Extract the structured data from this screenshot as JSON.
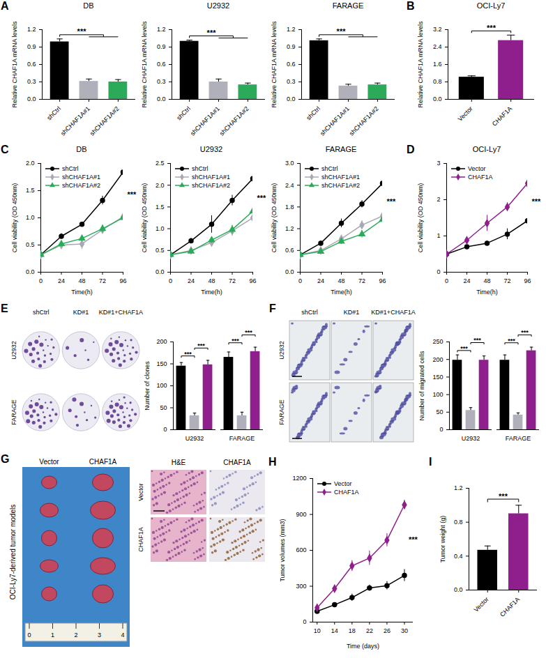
{
  "chart_data": [
    {
      "panel": "A",
      "type": "bar",
      "title": "DB",
      "ylabel": "Relative CHAF1A mRNA levels",
      "categories": [
        "shCtrl",
        "shCHAF1A#1",
        "shCHAF1A#2"
      ],
      "values": [
        0.99,
        0.31,
        0.3
      ],
      "errors": [
        0.05,
        0.04,
        0.04
      ],
      "colors": [
        "#000000",
        "#b0b0ba",
        "#2bab5a"
      ],
      "ylim": [
        0,
        1.2
      ],
      "yticks": [
        {
          "value": 0,
          "label": "0.0"
        },
        0.3,
        0.6,
        0.9,
        1.2
      ],
      "annotation": "***"
    },
    {
      "type": "bar",
      "title": "U2932",
      "ylabel": "Relative CHAF1A mRNA levels",
      "categories": [
        "shCtrl",
        "shCHAF1A#1",
        "shCHAF1A#2"
      ],
      "values": [
        1.0,
        0.3,
        0.25
      ],
      "errors": [
        0.02,
        0.05,
        0.03
      ],
      "colors": [
        "#000000",
        "#b0b0ba",
        "#2bab5a"
      ],
      "ylim": [
        0,
        1.2
      ],
      "yticks": [
        {
          "value": 0,
          "label": "0.0"
        },
        0.3,
        0.6,
        0.9,
        1.2
      ],
      "annotation": "***"
    },
    {
      "type": "bar",
      "title": "FARAGE",
      "ylabel": "Relative CHAF1A mRNA levels",
      "categories": [
        "shCtrl",
        "shCHAF1A#1",
        "shCHAF1A#2"
      ],
      "values": [
        1.01,
        0.23,
        0.25
      ],
      "errors": [
        0.03,
        0.03,
        0.03
      ],
      "colors": [
        "#000000",
        "#b0b0ba",
        "#2bab5a"
      ],
      "ylim": [
        0,
        1.2
      ],
      "yticks": [
        {
          "value": 0,
          "label": "0.0"
        },
        0.3,
        0.6,
        0.9,
        1.2
      ],
      "annotation": "***"
    },
    {
      "panel": "B",
      "type": "bar",
      "title": "OCI-Ly7",
      "ylabel": "Relative CHAF1A mRNA levels",
      "categories": [
        "Vector",
        "CHAF1A"
      ],
      "values": [
        1.02,
        2.7
      ],
      "errors": [
        0.06,
        0.25
      ],
      "colors": [
        "#000000",
        "#8e1f8c"
      ],
      "ylim": [
        0,
        3.2
      ],
      "yticks": [
        {
          "value": 0,
          "label": "0.0"
        },
        0.8,
        1.6,
        2.4,
        3.2
      ],
      "annotation": "***"
    },
    {
      "panel": "C",
      "type": "line",
      "title": "DB",
      "xlabel": "Time(h)",
      "ylabel": "Cell viability (OD 450nm)",
      "x": [
        0,
        24,
        48,
        72,
        96
      ],
      "xlim": [
        0,
        96
      ],
      "xticks": [
        0,
        24,
        48,
        72,
        96
      ],
      "ylim": [
        0,
        2.0
      ],
      "yticks": [
        {
          "value": 0,
          "label": "0.0"
        },
        0.5,
        {
          "value": 1,
          "label": "1.0"
        },
        1.5,
        {
          "value": 2,
          "label": "2.0"
        }
      ],
      "legend": "top-left",
      "annotation": "***",
      "series": [
        {
          "name": "shCtrl",
          "color": "#000000",
          "marker": "circle",
          "values": [
            0.32,
            0.66,
            0.88,
            1.32,
            1.84
          ],
          "errors": [
            0.03,
            0.05,
            0.04,
            0.08,
            0.1
          ]
        },
        {
          "name": "shCHAF1A#1",
          "color": "#a9a9b3",
          "marker": "diamond",
          "values": [
            0.32,
            0.5,
            0.52,
            0.78,
            1.02
          ],
          "errors": [
            0.03,
            0.05,
            0.1,
            0.06,
            0.08
          ]
        },
        {
          "name": "shCHAF1A#2",
          "color": "#2bab5a",
          "marker": "triangle",
          "values": [
            0.32,
            0.52,
            0.62,
            0.8,
            1.0
          ],
          "errors": [
            0.03,
            0.06,
            0.05,
            0.07,
            0.06
          ]
        }
      ]
    },
    {
      "type": "line",
      "title": "U2932",
      "xlabel": "Time(h)",
      "ylabel": "Cell viability (OD 450nm)",
      "x": [
        0,
        24,
        48,
        72,
        96
      ],
      "xlim": [
        0,
        96
      ],
      "xticks": [
        0,
        24,
        48,
        72,
        96
      ],
      "ylim": [
        0,
        2.5
      ],
      "yticks": [
        {
          "value": 0,
          "label": "0.0"
        },
        0.5,
        {
          "value": 1,
          "label": "1.0"
        },
        1.5,
        {
          "value": 2,
          "label": "2.0"
        },
        2.5
      ],
      "legend": "top-left",
      "annotation": "***",
      "series": [
        {
          "name": "shCtrl",
          "color": "#000000",
          "marker": "circle",
          "values": [
            0.4,
            0.72,
            1.1,
            1.65,
            2.15
          ],
          "errors": [
            0.03,
            0.06,
            0.2,
            0.12,
            0.12
          ]
        },
        {
          "name": "shCHAF1A#1",
          "color": "#a9a9b3",
          "marker": "diamond",
          "values": [
            0.4,
            0.5,
            0.68,
            0.95,
            1.25
          ],
          "errors": [
            0.03,
            0.05,
            0.08,
            0.12,
            0.18
          ]
        },
        {
          "name": "shCHAF1A#2",
          "color": "#2bab5a",
          "marker": "triangle",
          "values": [
            0.4,
            0.48,
            0.74,
            0.98,
            1.4
          ],
          "errors": [
            0.03,
            0.04,
            0.07,
            0.1,
            0.1
          ]
        }
      ]
    },
    {
      "type": "line",
      "title": "FARAGE",
      "xlabel": "Time(h)",
      "ylabel": "Cell viability (OD 450nm)",
      "x": [
        0,
        24,
        48,
        72,
        96
      ],
      "xlim": [
        0,
        96
      ],
      "xticks": [
        0,
        24,
        48,
        72,
        96
      ],
      "ylim": [
        0,
        3.0
      ],
      "yticks": [
        {
          "value": 0,
          "label": "0.0"
        },
        0.6,
        1.2,
        1.8,
        2.4,
        {
          "value": 3,
          "label": "3.0"
        }
      ],
      "legend": "top-left",
      "annotation": "***",
      "series": [
        {
          "name": "shCtrl",
          "color": "#000000",
          "marker": "circle",
          "values": [
            0.48,
            0.8,
            1.35,
            1.88,
            2.45
          ],
          "errors": [
            0.03,
            0.06,
            0.12,
            0.1,
            0.2
          ]
        },
        {
          "name": "shCHAF1A#1",
          "color": "#a9a9b3",
          "marker": "diamond",
          "values": [
            0.48,
            0.6,
            0.92,
            1.3,
            1.55
          ],
          "errors": [
            0.03,
            0.05,
            0.1,
            0.12,
            0.12
          ]
        },
        {
          "name": "shCHAF1A#2",
          "color": "#2bab5a",
          "marker": "triangle",
          "values": [
            0.48,
            0.57,
            0.85,
            1.05,
            1.45
          ],
          "errors": [
            0.03,
            0.04,
            0.08,
            0.1,
            0.08
          ]
        }
      ]
    },
    {
      "panel": "D",
      "type": "line",
      "title": "OCI-Ly7",
      "xlabel": "Time(h)",
      "ylabel": "Cell viability (OD 450nm)",
      "x": [
        0,
        24,
        48,
        72,
        96
      ],
      "xlim": [
        0,
        96
      ],
      "xticks": [
        0,
        24,
        48,
        72,
        96
      ],
      "ylim": [
        0,
        3
      ],
      "yticks": [
        0,
        1,
        2,
        3
      ],
      "legend": "top-left",
      "annotation": "***",
      "series": [
        {
          "name": "Vector",
          "color": "#000000",
          "marker": "circle",
          "values": [
            0.5,
            0.7,
            0.8,
            1.05,
            1.42
          ],
          "errors": [
            0.03,
            0.05,
            0.06,
            0.15,
            0.25
          ]
        },
        {
          "name": "CHAF1A",
          "color": "#8e1f8c",
          "marker": "diamond",
          "values": [
            0.5,
            0.88,
            1.35,
            1.8,
            2.45
          ],
          "errors": [
            0.03,
            0.1,
            0.22,
            0.12,
            0.2
          ]
        }
      ]
    },
    {
      "type": "bar",
      "ylabel": "Number of clones",
      "categories": [
        "U2932",
        "FARAGE"
      ],
      "ylim": [
        0,
        200
      ],
      "yticks": [
        0,
        50,
        100,
        150,
        200
      ],
      "annotation": "***",
      "series": [
        {
          "name": "shCtrl",
          "color": "#000000",
          "values": [
            145,
            165
          ],
          "errors": [
            8,
            12
          ]
        },
        {
          "name": "KD#1",
          "color": "#b0b0ba",
          "values": [
            32,
            32
          ],
          "errors": [
            6,
            8
          ]
        },
        {
          "name": "KD#1+CHAF1A",
          "color": "#8e1f8c",
          "values": [
            148,
            178
          ],
          "errors": [
            10,
            10
          ]
        }
      ]
    },
    {
      "type": "bar",
      "ylabel": "Number of migrated cells",
      "categories": [
        "U2932",
        "FARAGE"
      ],
      "ylim": [
        0,
        250
      ],
      "yticks": [
        0,
        50,
        100,
        150,
        200,
        250
      ],
      "annotation": "***",
      "series": [
        {
          "name": "shCtrl",
          "color": "#000000",
          "values": [
            198,
            198
          ],
          "errors": [
            15,
            15
          ]
        },
        {
          "name": "KD#1",
          "color": "#b0b0ba",
          "values": [
            55,
            42
          ],
          "errors": [
            8,
            6
          ]
        },
        {
          "name": "KD#1+CHAF1A",
          "color": "#8e1f8c",
          "values": [
            198,
            225
          ],
          "errors": [
            12,
            10
          ]
        }
      ]
    },
    {
      "panel": "H",
      "type": "line",
      "xlabel": "Time (days)",
      "ylabel": "Tumor volumes (mm3)",
      "x": [
        10,
        14,
        18,
        22,
        26,
        30
      ],
      "xlim": [
        9,
        32
      ],
      "xticks": [
        10,
        14,
        18,
        22,
        26,
        30
      ],
      "ylim": [
        0,
        1200
      ],
      "yticks": [
        0,
        300,
        600,
        900,
        1200
      ],
      "legend": "top-left",
      "annotation": "***",
      "series": [
        {
          "name": "Vector",
          "color": "#000000",
          "marker": "circle",
          "values": [
            90,
            145,
            205,
            285,
            305,
            390
          ],
          "errors": [
            20,
            15,
            30,
            25,
            35,
            50
          ]
        },
        {
          "name": "CHAF1A",
          "color": "#8e1f8c",
          "marker": "diamond",
          "values": [
            120,
            280,
            470,
            535,
            685,
            980
          ],
          "errors": [
            25,
            20,
            45,
            60,
            55,
            40
          ]
        }
      ]
    },
    {
      "panel": "I",
      "type": "bar",
      "ylabel": "Tumor weight (g)",
      "categories": [
        "Vector",
        "CHAF1A"
      ],
      "values": [
        0.47,
        0.9
      ],
      "errors": [
        0.05,
        0.1
      ],
      "colors": [
        "#000000",
        "#8e1f8c"
      ],
      "ylim": [
        0,
        1.2
      ],
      "yticks": [
        {
          "value": 0,
          "label": "0.0"
        },
        0.4,
        0.8,
        1.2
      ],
      "annotation": "***"
    }
  ],
  "image_panels": [
    {
      "panel": "E",
      "columns": [
        "shCtrl",
        "KD#1",
        "KD#1+CHAF1A"
      ],
      "rows": [
        "U2932",
        "FARAGE"
      ]
    },
    {
      "panel": "F",
      "columns": [
        "shCtrl",
        "KD#1",
        "KD#1+CHAF1A"
      ],
      "rows": [
        "U2932",
        "FARAGE"
      ]
    },
    {
      "panel": "G",
      "title": "OCI-Ly7-derived tumor models",
      "columns": [
        "Vector",
        "CHAF1A"
      ],
      "ruler_ticks": [
        0,
        1,
        2,
        3,
        4
      ],
      "stain_columns": [
        "H&E",
        "CHAF1A"
      ],
      "stain_rows": [
        "Vector",
        "CHAF1A"
      ]
    }
  ]
}
